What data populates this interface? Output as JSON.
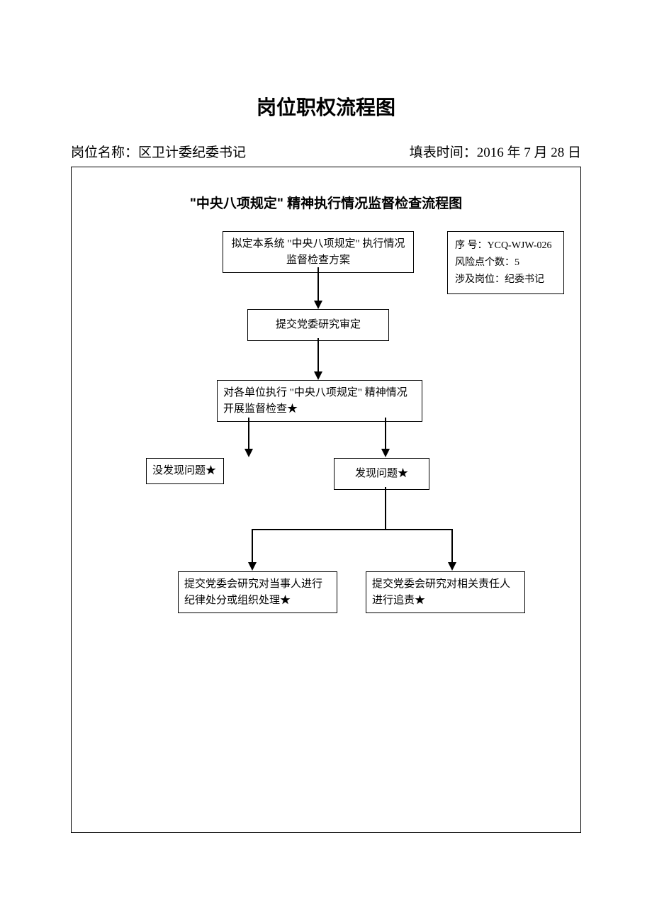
{
  "page_title": "岗位职权流程图",
  "header": {
    "position_label": "岗位名称：",
    "position_value": "区卫计委纪委书记",
    "date_label": "填表时间：",
    "date_value": "2016 年 7 月 28 日"
  },
  "flowchart": {
    "type": "flowchart",
    "title": "\"中央八项规定\" 精神执行情况监督检查流程图",
    "background_color": "#ffffff",
    "border_color": "#000000",
    "text_color": "#000000",
    "node_fontsize": 15,
    "title_fontsize": 19,
    "info_box": {
      "serial_label": "序  号：",
      "serial_value": "YCQ-WJW-026",
      "risk_label": "风险点个数：",
      "risk_value": "5",
      "position_label": "涉及岗位：",
      "position_value": "纪委书记"
    },
    "nodes": {
      "n1": "拟定本系统 \"中央八项规定\" 执行情况监督检查方案",
      "n2": "提交党委研究审定",
      "n3": "对各单位执行 \"中央八项规定\" 精神情况开展监督检查★",
      "n4": "没发现问题★",
      "n5": "发现问题★",
      "n6": "提交党委会研究对当事人进行纪律处分或组织处理★",
      "n7": "提交党委会研究对相关责任人进行追责★"
    },
    "edges": [
      {
        "from": "n1",
        "to": "n2"
      },
      {
        "from": "n2",
        "to": "n3"
      },
      {
        "from": "n3",
        "to": "n4"
      },
      {
        "from": "n3",
        "to": "n5"
      },
      {
        "from": "n5",
        "to": "n6"
      },
      {
        "from": "n5",
        "to": "n7"
      }
    ]
  }
}
